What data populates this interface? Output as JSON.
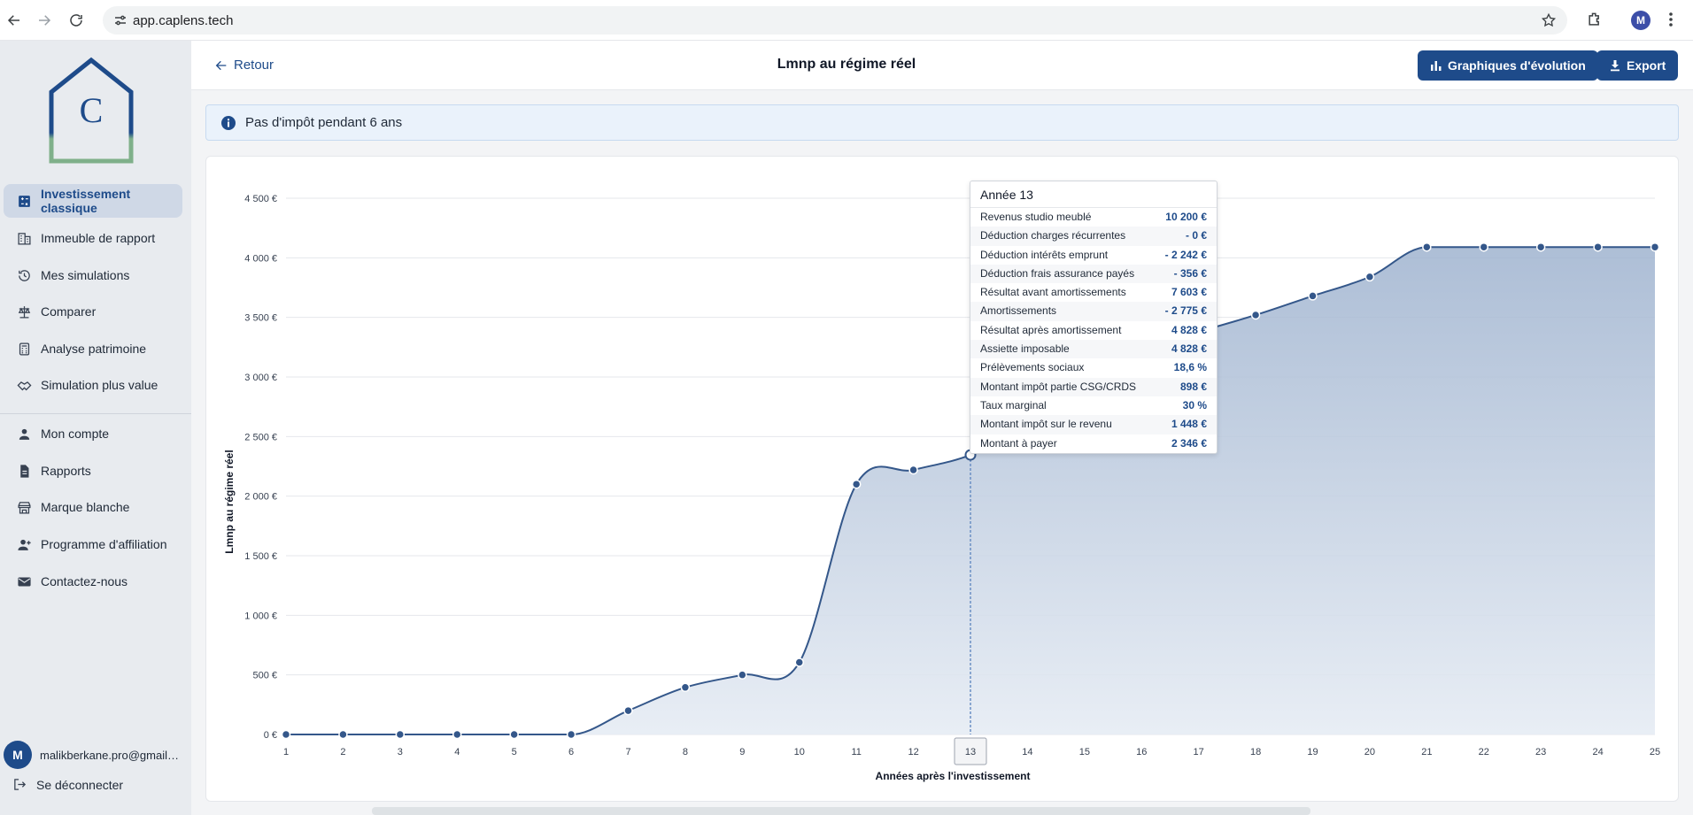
{
  "browser": {
    "url": "app.caplens.tech",
    "profile_initial": "M"
  },
  "sidebar": {
    "logo_letter": "C",
    "items": [
      {
        "label": "Investissement classique",
        "icon": "dashboard-icon",
        "active": true
      },
      {
        "label": "Immeuble de rapport",
        "icon": "building-icon",
        "active": false
      },
      {
        "label": "Mes simulations",
        "icon": "history-icon",
        "active": false
      },
      {
        "label": "Comparer",
        "icon": "scale-icon",
        "active": false
      },
      {
        "label": "Analyse patrimoine",
        "icon": "calculator-icon",
        "active": false
      },
      {
        "label": "Simulation plus value",
        "icon": "handshake-icon",
        "active": false
      },
      {
        "label": "Mon compte",
        "icon": "person-icon",
        "active": false
      },
      {
        "label": "Rapports",
        "icon": "document-icon",
        "active": false
      },
      {
        "label": "Marque blanche",
        "icon": "store-icon",
        "active": false
      },
      {
        "label": "Programme d'affiliation",
        "icon": "add-user-icon",
        "active": false
      },
      {
        "label": "Contactez-nous",
        "icon": "mail-icon",
        "active": false
      }
    ],
    "user": {
      "initial": "M",
      "email": "malikberkane.pro@gmail.com"
    },
    "logout_label": "Se déconnecter"
  },
  "header": {
    "back_label": "Retour",
    "title": "Lmnp au régime réel",
    "evolution_label": "Graphiques d'évolution",
    "export_label": "Export"
  },
  "info": {
    "message": "Pas d'impôt pendant 6 ans"
  },
  "colors": {
    "primary": "#1e4b8a",
    "line": "#34578a",
    "area_top": "#9fb3cf",
    "area_bottom": "#e6ecf4"
  },
  "chart_data": {
    "type": "area",
    "x": [
      1,
      2,
      3,
      4,
      5,
      6,
      7,
      8,
      9,
      10,
      11,
      12,
      13,
      14,
      15,
      16,
      17,
      18,
      19,
      20,
      21,
      22,
      23,
      24,
      25
    ],
    "values": [
      0,
      0,
      0,
      0,
      0,
      0,
      200,
      395,
      500,
      605,
      2100,
      2220,
      2346,
      2600,
      2900,
      3250,
      3380,
      3520,
      3680,
      3840,
      4090,
      4090,
      4090,
      4090,
      4090
    ],
    "xlabel": "Années après l'investissement",
    "ylabel": "Lmnp au régime réel",
    "ylim": [
      0,
      4500
    ],
    "y_ticks": [
      "0 €",
      "500 €",
      "1 000 €",
      "1 500 €",
      "2 000 €",
      "2 500 €",
      "3 000 €",
      "3 500 €",
      "4 000 €",
      "4 500 €"
    ],
    "grid": true,
    "highlight_x": 13
  },
  "tooltip": {
    "title": "Année 13",
    "rows": [
      {
        "label": "Revenus studio meublé",
        "value": "10 200 €"
      },
      {
        "label": "Déduction charges récurrentes",
        "value": "- 0 €"
      },
      {
        "label": "Déduction intérêts emprunt",
        "value": "- 2 242 €"
      },
      {
        "label": "Déduction frais assurance payés",
        "value": "- 356 €"
      },
      {
        "label": "Résultat avant amortissements",
        "value": "7 603 €"
      },
      {
        "label": "Amortissements",
        "value": "- 2 775 €"
      },
      {
        "label": "Résultat après amortissement",
        "value": "4 828 €"
      },
      {
        "label": "Assiette imposable",
        "value": "4 828 €"
      },
      {
        "label": "Prélèvements sociaux",
        "value": "18,6 %"
      },
      {
        "label": "Montant impôt partie CSG/CRDS",
        "value": "898 €"
      },
      {
        "label": "Taux marginal",
        "value": "30 %"
      },
      {
        "label": "Montant impôt sur le revenu",
        "value": "1 448 €"
      },
      {
        "label": "Montant à payer",
        "value": "2 346 €"
      }
    ]
  }
}
